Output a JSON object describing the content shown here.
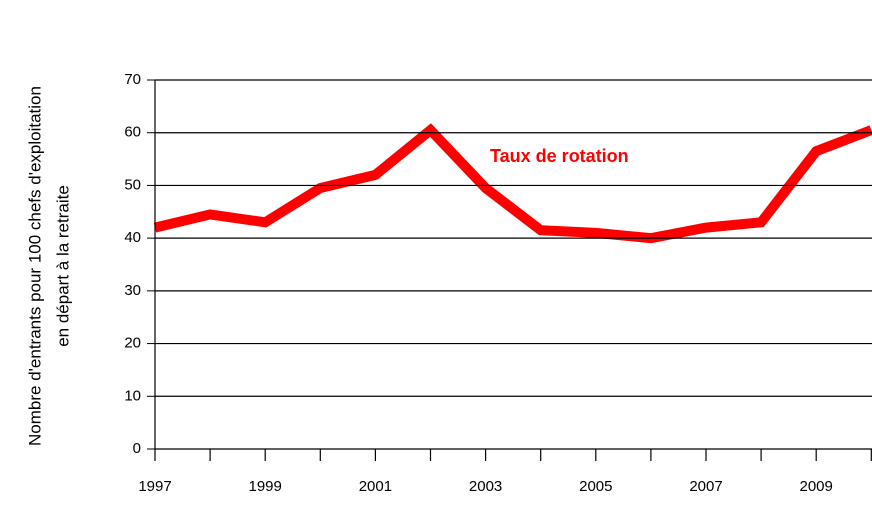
{
  "chart_data": {
    "type": "line",
    "ylabel": [
      "Nombre d'entrants pour 100 chefs d'exploitation",
      "en départ à la retraite"
    ],
    "annotation": "Taux de rotation",
    "categories": [
      "1997",
      null,
      "1999",
      null,
      "2001",
      null,
      "2003",
      null,
      "2005",
      null,
      "2007",
      null,
      "2009",
      null
    ],
    "series": [
      {
        "name": "Taux de rotation",
        "color": "#ff0000",
        "values": [
          42,
          44.5,
          43,
          49.5,
          52,
          60.5,
          49.5,
          41.5,
          41,
          40,
          42,
          43,
          56.5,
          60.5
        ]
      }
    ],
    "ylim": [
      0,
      70
    ],
    "yticks": [
      0,
      10,
      20,
      30,
      40,
      50,
      60,
      70
    ],
    "grid": true
  }
}
